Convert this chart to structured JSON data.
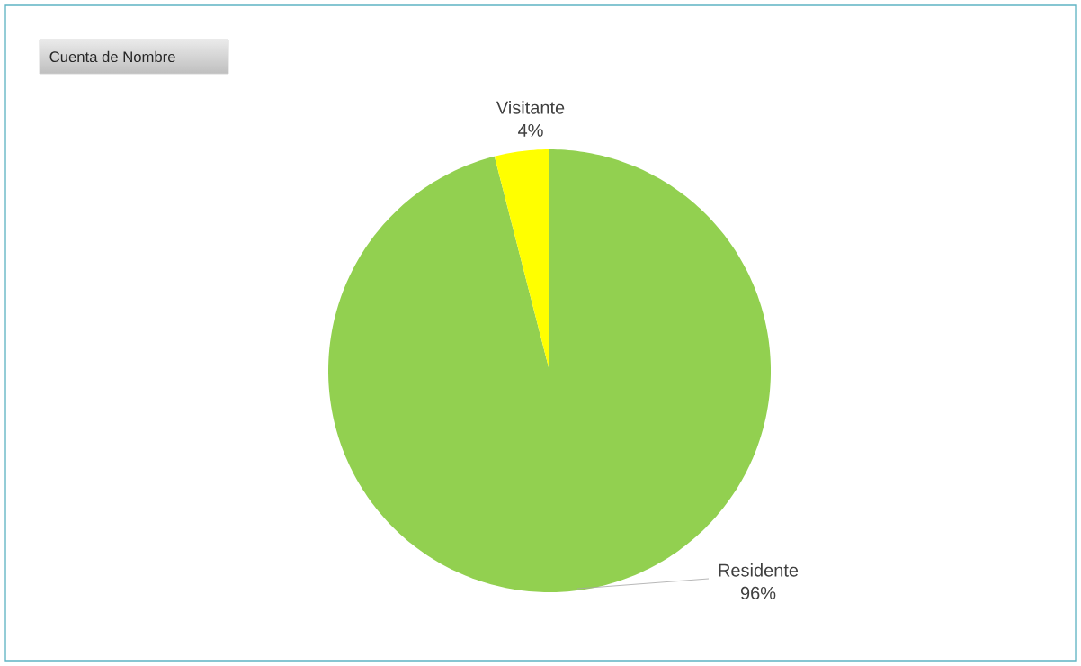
{
  "chart_data": {
    "type": "pie",
    "title": "Cuenta de Nombre",
    "categories": [
      "Residente",
      "Visitante"
    ],
    "values": [
      96,
      4
    ],
    "value_labels": [
      "96%",
      "4%"
    ],
    "colors": [
      "#92d050",
      "#ffff00"
    ]
  }
}
